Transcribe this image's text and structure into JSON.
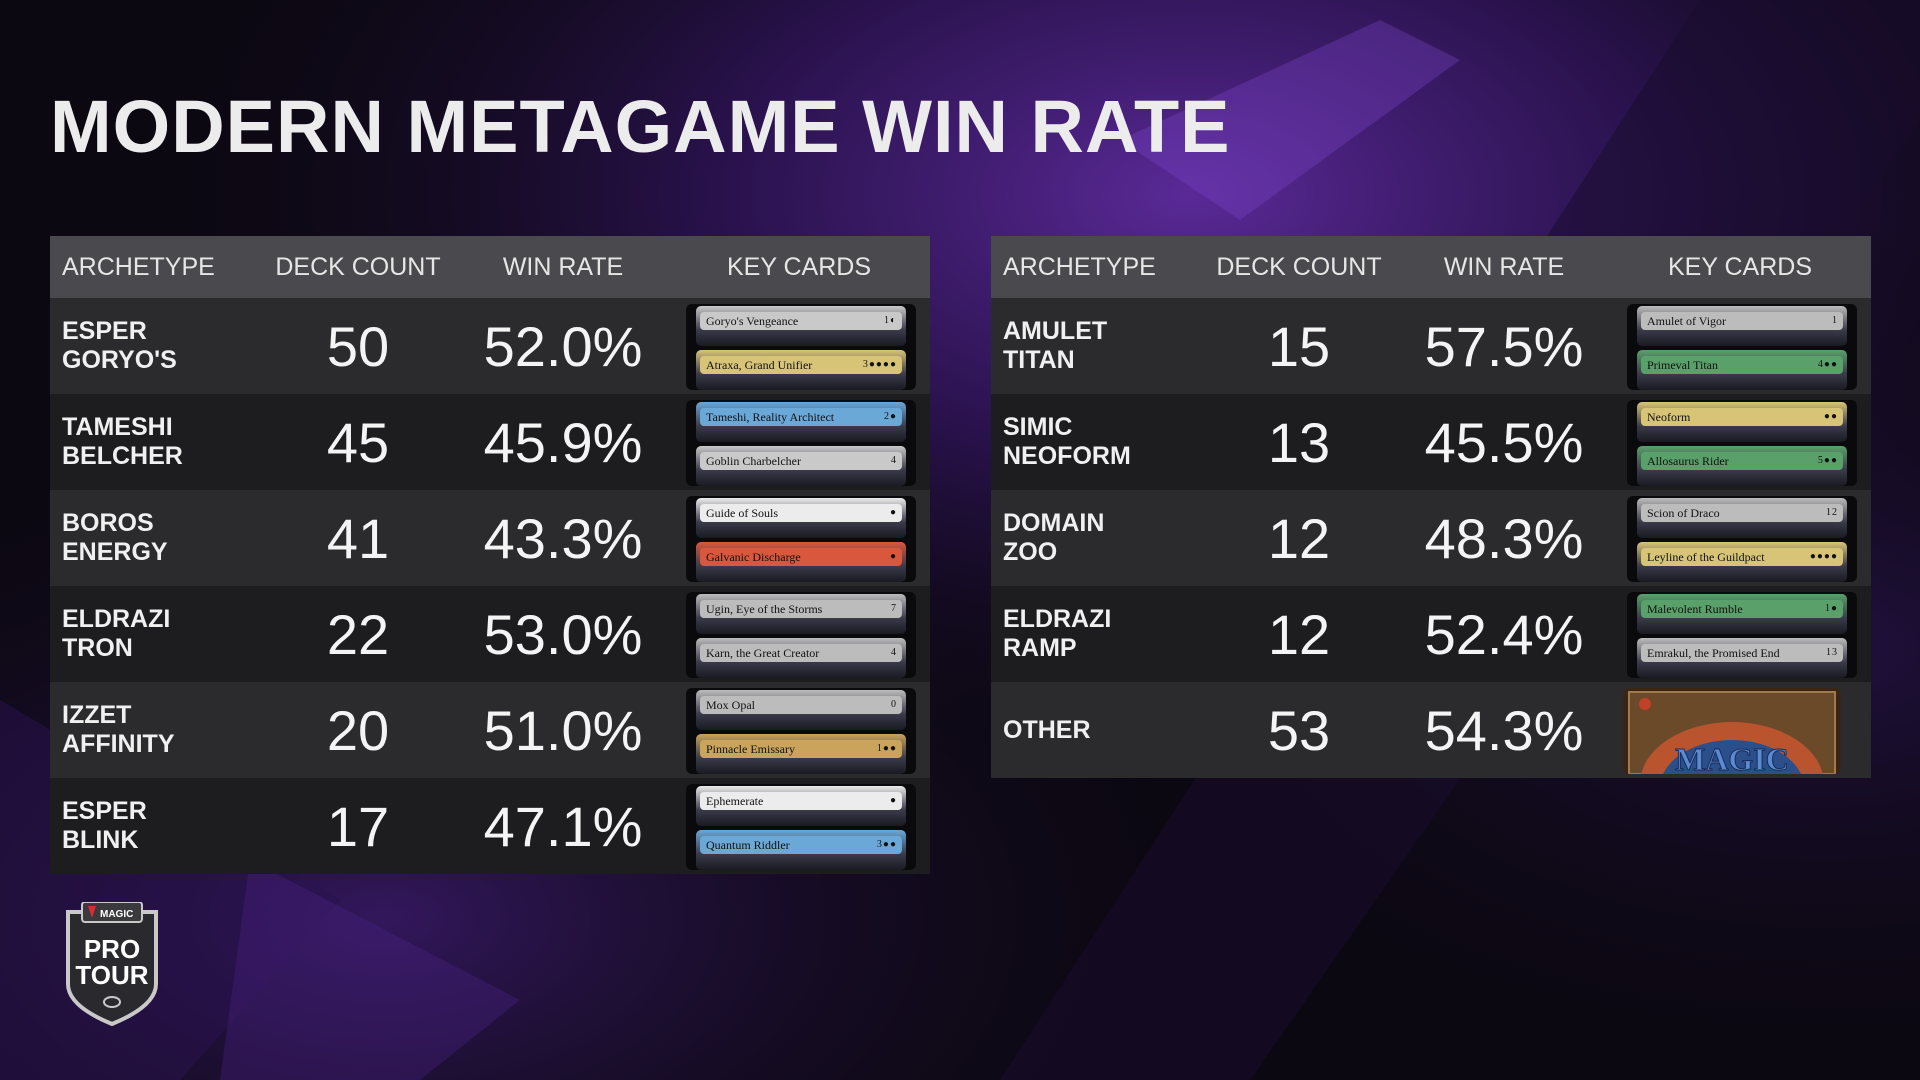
{
  "title": "MODERN METAGAME WIN RATE",
  "headers": {
    "archetype": "ARCHETYPE",
    "deck_count": "DECK COUNT",
    "win_rate": "WIN RATE",
    "key_cards": "KEY CARDS"
  },
  "colors": {
    "header_bg": "#4a4a4e",
    "row_light": "#2b2b2d",
    "row_dark": "#1d1d1f",
    "background": "#0c0812",
    "accent_purple": "#5a2a9a"
  },
  "logo": {
    "brand": "MAGIC",
    "line1": "PRO",
    "line2": "TOUR",
    "icon": "pro-tour-shield-icon"
  },
  "left_table": [
    {
      "line1": "ESPER",
      "line2": "GORYO'S",
      "deck_count": "50",
      "win_rate": "52.0%",
      "cards": [
        {
          "name": "Goryo's Vengeance",
          "cost": "1◐",
          "color": "#c9c9c9"
        },
        {
          "name": "Atraxa, Grand Unifier",
          "cost": "3●●●●",
          "color": "#d8c477"
        }
      ]
    },
    {
      "line1": "TAMESHI",
      "line2": "BELCHER",
      "deck_count": "45",
      "win_rate": "45.9%",
      "cards": [
        {
          "name": "Tameshi, Reality Architect",
          "cost": "2●",
          "color": "#6aa8d8"
        },
        {
          "name": "Goblin Charbelcher",
          "cost": "4",
          "color": "#c9c9c9"
        }
      ]
    },
    {
      "line1": "BOROS",
      "line2": "ENERGY",
      "deck_count": "41",
      "win_rate": "43.3%",
      "cards": [
        {
          "name": "Guide of Souls",
          "cost": "●",
          "color": "#ececec"
        },
        {
          "name": "Galvanic Discharge",
          "cost": "●",
          "color": "#d9583d"
        }
      ]
    },
    {
      "line1": "ELDRAZI",
      "line2": "TRON",
      "deck_count": "22",
      "win_rate": "53.0%",
      "cards": [
        {
          "name": "Ugin, Eye of the Storms",
          "cost": "7",
          "color": "#bcbcbc"
        },
        {
          "name": "Karn, the Great Creator",
          "cost": "4",
          "color": "#bcbcbc"
        }
      ]
    },
    {
      "line1": "IZZET",
      "line2": "AFFINITY",
      "deck_count": "20",
      "win_rate": "51.0%",
      "cards": [
        {
          "name": "Mox Opal",
          "cost": "0",
          "color": "#bcbcbc"
        },
        {
          "name": "Pinnacle Emissary",
          "cost": "1●●",
          "color": "#c9a45a"
        }
      ]
    },
    {
      "line1": "ESPER",
      "line2": "BLINK",
      "deck_count": "17",
      "win_rate": "47.1%",
      "cards": [
        {
          "name": "Ephemerate",
          "cost": "●",
          "color": "#ececec"
        },
        {
          "name": "Quantum Riddler",
          "cost": "3●●",
          "color": "#6aa8d8"
        }
      ]
    }
  ],
  "right_table": [
    {
      "line1": "AMULET",
      "line2": "TITAN",
      "deck_count": "15",
      "win_rate": "57.5%",
      "cards": [
        {
          "name": "Amulet of Vigor",
          "cost": "1",
          "color": "#bcbcbc"
        },
        {
          "name": "Primeval Titan",
          "cost": "4●●",
          "color": "#5aa06a"
        }
      ]
    },
    {
      "line1": "SIMIC",
      "line2": "NEOFORM",
      "deck_count": "13",
      "win_rate": "45.5%",
      "cards": [
        {
          "name": "Neoform",
          "cost": "●●",
          "color": "#d8c477"
        },
        {
          "name": "Allosaurus Rider",
          "cost": "5●●",
          "color": "#5aa06a"
        }
      ]
    },
    {
      "line1": "DOMAIN",
      "line2": "ZOO",
      "deck_count": "12",
      "win_rate": "48.3%",
      "cards": [
        {
          "name": "Scion of Draco",
          "cost": "12",
          "color": "#bcbcbc"
        },
        {
          "name": "Leyline of the Guildpact",
          "cost": "●●●●",
          "color": "#d8c477"
        }
      ]
    },
    {
      "line1": "ELDRAZI",
      "line2": "RAMP",
      "deck_count": "12",
      "win_rate": "52.4%",
      "cards": [
        {
          "name": "Malevolent Rumble",
          "cost": "1●",
          "color": "#5aa06a"
        },
        {
          "name": "Emrakul, the Promised End",
          "cost": "13",
          "color": "#bcbcbc"
        }
      ]
    },
    {
      "line1": "OTHER",
      "line2": "",
      "deck_count": "53",
      "win_rate": "54.3%",
      "cards": [],
      "card_back": "MAGIC"
    }
  ],
  "chart_data": {
    "type": "table",
    "title": "MODERN METAGAME WIN RATE",
    "columns": [
      "ARCHETYPE",
      "DECK COUNT",
      "WIN RATE",
      "KEY CARDS"
    ],
    "rows": [
      [
        "ESPER GORYO'S",
        50,
        52.0,
        "Goryo's Vengeance, Atraxa, Grand Unifier"
      ],
      [
        "TAMESHI BELCHER",
        45,
        45.9,
        "Tameshi, Reality Architect, Goblin Charbelcher"
      ],
      [
        "BOROS ENERGY",
        41,
        43.3,
        "Guide of Souls, Galvanic Discharge"
      ],
      [
        "ELDRAZI TRON",
        22,
        53.0,
        "Ugin, Eye of the Storms, Karn, the Great Creator"
      ],
      [
        "IZZET AFFINITY",
        20,
        51.0,
        "Mox Opal, Pinnacle Emissary"
      ],
      [
        "ESPER BLINK",
        17,
        47.1,
        "Ephemerate, Quantum Riddler"
      ],
      [
        "AMULET TITAN",
        15,
        57.5,
        "Amulet of Vigor, Primeval Titan"
      ],
      [
        "SIMIC NEOFORM",
        13,
        45.5,
        "Neoform, Allosaurus Rider"
      ],
      [
        "DOMAIN ZOO",
        12,
        48.3,
        "Scion of Draco, Leyline of the Guildpact"
      ],
      [
        "ELDRAZI RAMP",
        12,
        52.4,
        "Malevolent Rumble, Emrakul, the Promised End"
      ],
      [
        "OTHER",
        53,
        54.3,
        ""
      ]
    ]
  }
}
